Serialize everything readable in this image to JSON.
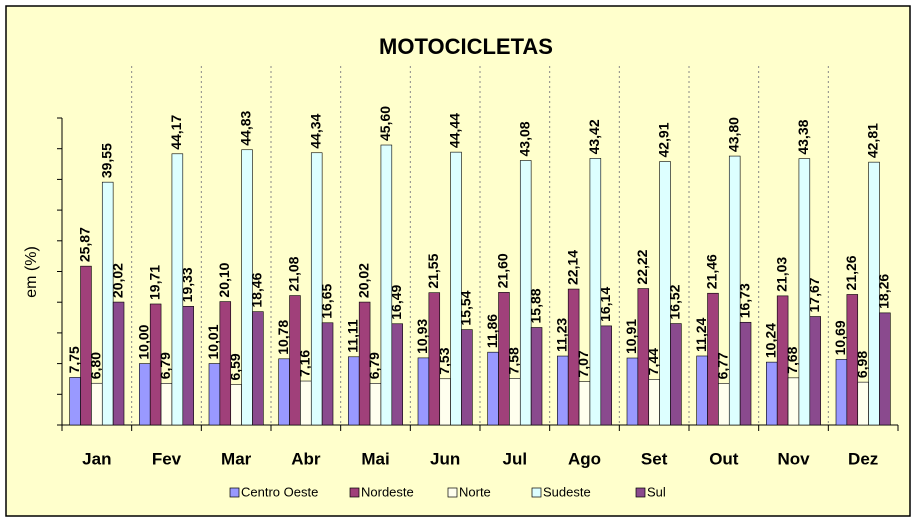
{
  "chart_data": {
    "type": "bar",
    "title": "MOTOCICLETAS",
    "y_label": "em (%)",
    "categories": [
      "Jan",
      "Fev",
      "Mar",
      "Abr",
      "Mai",
      "Jun",
      "Jul",
      "Ago",
      "Set",
      "Out",
      "Nov",
      "Dez"
    ],
    "series": [
      {
        "name": "Centro Oeste",
        "color": "#9999ff",
        "values": [
          7.75,
          10.0,
          10.01,
          10.78,
          11.11,
          10.93,
          11.86,
          11.23,
          10.91,
          11.24,
          10.24,
          10.69
        ],
        "value_labels": [
          "7,75",
          "10,00",
          "10,01",
          "10,78",
          "11,11",
          "10,93",
          "11,86",
          "11,23",
          "10,91",
          "11,24",
          "10,24",
          "10,69"
        ]
      },
      {
        "name": "Nordeste",
        "color": "#a0407a",
        "values": [
          25.87,
          19.71,
          20.1,
          21.08,
          20.02,
          21.55,
          21.6,
          22.14,
          22.22,
          21.46,
          21.03,
          21.26
        ],
        "value_labels": [
          "25,87",
          "19,71",
          "20,10",
          "21,08",
          "20,02",
          "21,55",
          "21,60",
          "22,14",
          "22,22",
          "21,46",
          "21,03",
          "21,26"
        ]
      },
      {
        "name": "Norte",
        "color": "#ffffee",
        "values": [
          6.8,
          6.79,
          6.59,
          7.16,
          6.79,
          7.53,
          7.58,
          7.07,
          7.44,
          6.77,
          7.68,
          6.98
        ],
        "value_labels": [
          "6,80",
          "6,79",
          "6,59",
          "7,16",
          "6,79",
          "7,53",
          "7,58",
          "7,07",
          "7,44",
          "6,77",
          "7,68",
          "6,98"
        ]
      },
      {
        "name": "Sudeste",
        "color": "#ddffff",
        "values": [
          39.55,
          44.17,
          44.83,
          44.34,
          45.6,
          44.44,
          43.08,
          43.42,
          42.91,
          43.8,
          43.38,
          42.81
        ],
        "value_labels": [
          "39,55",
          "44,17",
          "44,83",
          "44,34",
          "45,60",
          "44,44",
          "43,08",
          "43,42",
          "42,91",
          "43,80",
          "43,38",
          "42,81"
        ]
      },
      {
        "name": "Sul",
        "color": "#8a4a8e",
        "values": [
          20.02,
          19.33,
          18.46,
          16.65,
          16.49,
          15.54,
          15.88,
          16.14,
          16.52,
          16.73,
          17.67,
          18.26
        ],
        "value_labels": [
          "20,02",
          "19,33",
          "18,46",
          "16,65",
          "16,49",
          "15,54",
          "15,88",
          "16,14",
          "16,52",
          "16,73",
          "17,67",
          "18,26"
        ]
      }
    ],
    "ylim": [
      0,
      50
    ],
    "yticks": [
      0,
      5,
      10,
      15,
      20,
      25,
      30,
      35,
      40,
      45,
      50
    ]
  }
}
